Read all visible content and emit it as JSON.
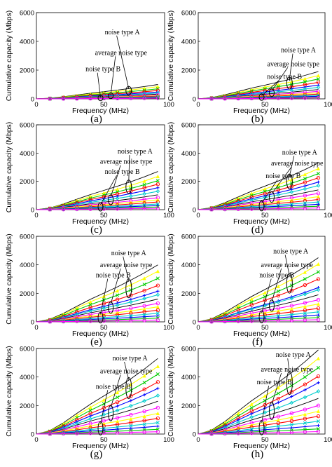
{
  "chart_data": {
    "type": "line",
    "xlabel": "Frequency (MHz)",
    "ylabel": "Cumulative capacity (Mbps)",
    "xlim": [
      0,
      95
    ],
    "ylim": [
      0,
      6000
    ],
    "x_ticks": [
      "0",
      "50",
      "100"
    ],
    "x_tick_values": [
      0,
      50,
      100
    ],
    "y_ticks": [
      "0",
      "2000",
      "4000",
      "6000"
    ],
    "y_tick_values": [
      0,
      2000,
      4000,
      6000
    ],
    "annotations": [
      "noise type A",
      "average noise type",
      "noise type B"
    ],
    "series_styles": [
      {
        "color": "#000000",
        "marker": "none"
      },
      {
        "color": "#ffff00",
        "marker": "triangle"
      },
      {
        "color": "#00cc00",
        "marker": "x"
      },
      {
        "color": "#ff0000",
        "marker": "circle"
      },
      {
        "color": "#0000ff",
        "marker": "plus"
      },
      {
        "color": "#00cccc",
        "marker": "diamond"
      },
      {
        "color": "#000000",
        "marker": "none"
      },
      {
        "color": "#ff00ff",
        "marker": "circle"
      },
      {
        "color": "#ffff00",
        "marker": "triangle"
      },
      {
        "color": "#ff0000",
        "marker": "circle"
      },
      {
        "color": "#00cccc",
        "marker": "x"
      },
      {
        "color": "#0000ff",
        "marker": "plus"
      },
      {
        "color": "#00cc00",
        "marker": "x"
      },
      {
        "color": "#ff00ff",
        "marker": "circle"
      }
    ],
    "panels": [
      {
        "label": "(a)",
        "y_at_90": [
          1000,
          850,
          700,
          580,
          480,
          400,
          330,
          270,
          220,
          180,
          140,
          110,
          80,
          50
        ]
      },
      {
        "label": "(b)",
        "y_at_90": [
          1900,
          1620,
          1380,
          1150,
          960,
          800,
          650,
          520,
          420,
          330,
          250,
          180,
          120,
          70
        ]
      },
      {
        "label": "(c)",
        "y_at_90": [
          2700,
          2350,
          2050,
          1800,
          1550,
          1300,
          1050,
          850,
          700,
          540,
          400,
          290,
          190,
          100
        ]
      },
      {
        "label": "(d)",
        "y_at_90": [
          3300,
          2900,
          2550,
          2250,
          1950,
          1700,
          1400,
          1150,
          920,
          720,
          540,
          380,
          240,
          120
        ]
      },
      {
        "label": "(e)",
        "y_at_90": [
          4000,
          3550,
          3050,
          2550,
          2150,
          1900,
          1600,
          1300,
          1050,
          820,
          600,
          420,
          260,
          130
        ]
      },
      {
        "label": "(f)",
        "y_at_90": [
          4500,
          4050,
          3500,
          3000,
          2400,
          2250,
          1900,
          1550,
          1250,
          950,
          700,
          480,
          300,
          150
        ]
      },
      {
        "label": "(g)",
        "y_at_90": [
          5300,
          4750,
          4200,
          3650,
          3200,
          2700,
          2300,
          1850,
          1450,
          1100,
          800,
          550,
          330,
          160
        ]
      },
      {
        "label": "(h)",
        "y_at_90": [
          5900,
          5300,
          4650,
          4050,
          3600,
          3000,
          2500,
          2000,
          1600,
          1250,
          900,
          600,
          360,
          170
        ]
      }
    ]
  }
}
